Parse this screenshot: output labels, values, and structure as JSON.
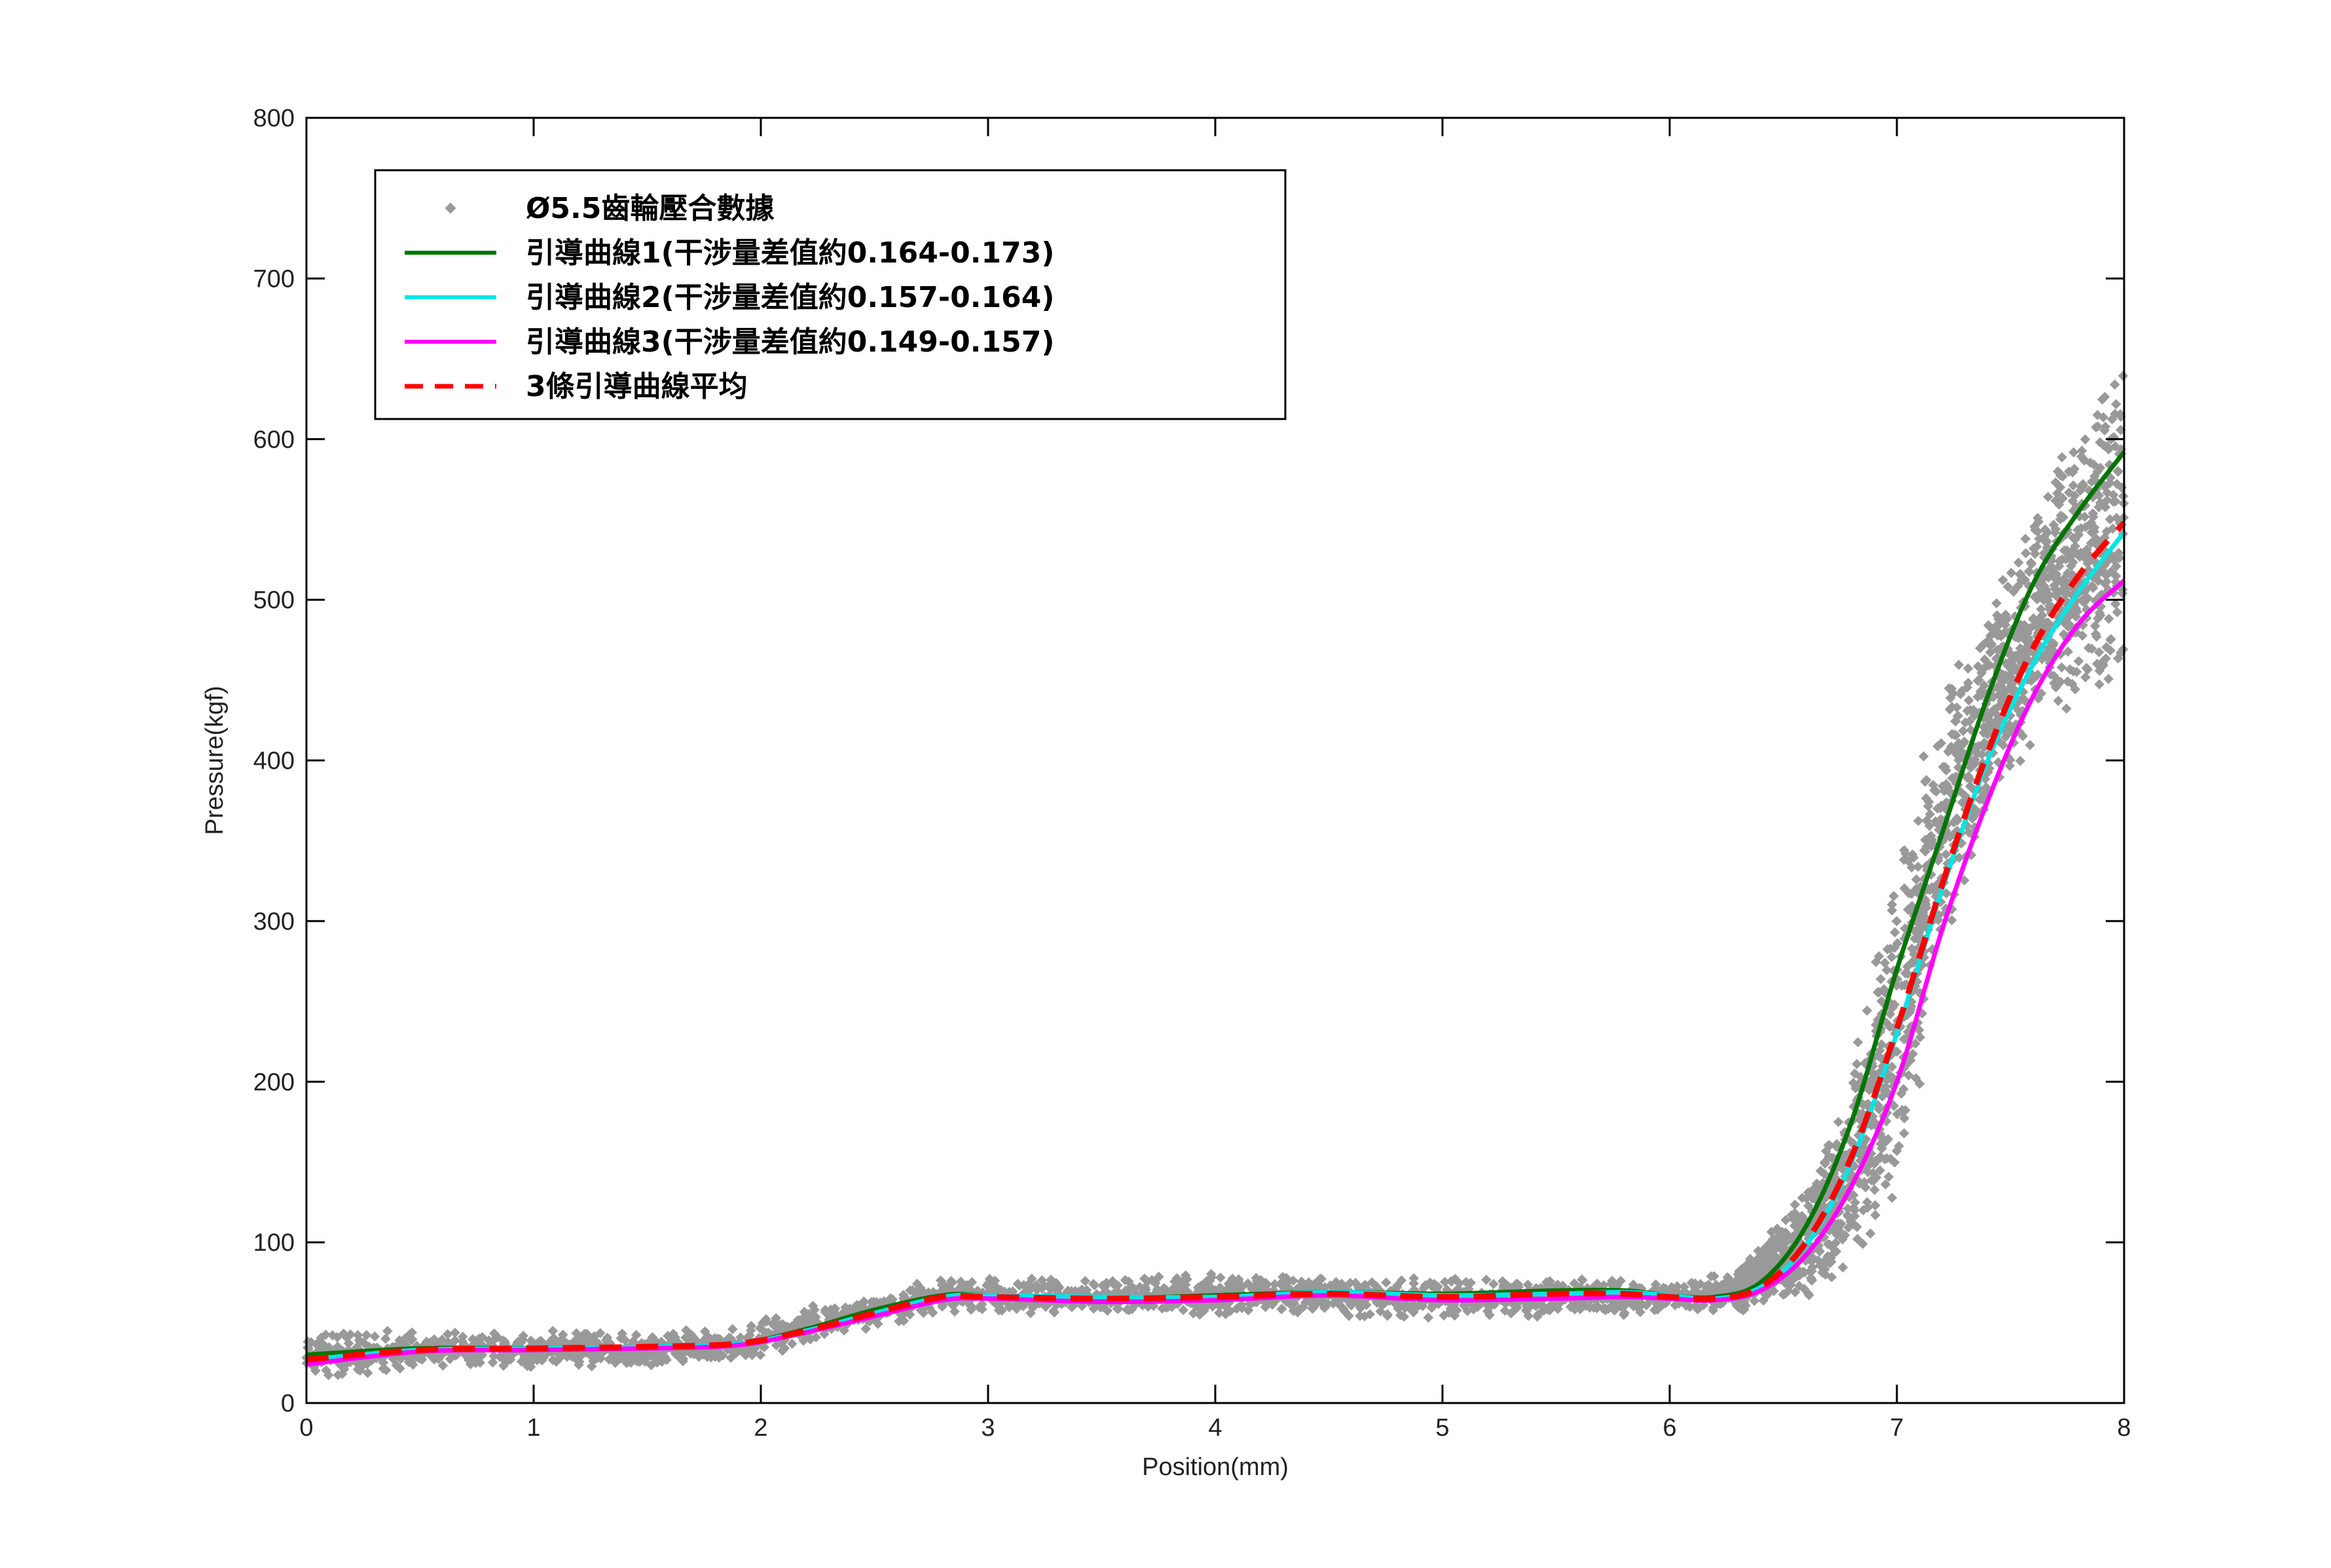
{
  "chart_data": {
    "type": "line",
    "title": "",
    "xlabel": "Position(mm)",
    "ylabel": "Pressure(kgf)",
    "xlim": [
      0,
      8
    ],
    "ylim": [
      0,
      800
    ],
    "xticks": [
      "0",
      "1",
      "2",
      "3",
      "4",
      "5",
      "6",
      "7",
      "8"
    ],
    "yticks": [
      "0",
      "100",
      "200",
      "300",
      "400",
      "500",
      "600",
      "700",
      "800"
    ],
    "grid": false,
    "legend_position": "top-left",
    "scatter": {
      "name": "Ø5.5齒輪壓合數據",
      "color": "#999999",
      "band": {
        "x": [
          0,
          0.5,
          1,
          1.5,
          1.9,
          2.2,
          2.5,
          2.8,
          3,
          3.5,
          4,
          4.5,
          5,
          5.5,
          6,
          6.3,
          6.6,
          6.8,
          7,
          7.2,
          7.4,
          7.6,
          7.8,
          8
        ],
        "lo": [
          18,
          25,
          25,
          25,
          28,
          38,
          50,
          58,
          58,
          58,
          58,
          58,
          55,
          56,
          58,
          60,
          75,
          100,
          150,
          300,
          380,
          430,
          460,
          470
        ],
        "hi": [
          40,
          42,
          42,
          42,
          44,
          58,
          65,
          75,
          75,
          75,
          78,
          75,
          75,
          75,
          72,
          80,
          125,
          190,
          320,
          420,
          480,
          540,
          590,
          630
        ]
      }
    },
    "series": [
      {
        "name": "引導曲線1(干涉量差值約0.164-0.173)",
        "color": "#007500",
        "style": "solid",
        "x": [
          0,
          0.5,
          1,
          1.5,
          1.9,
          2.2,
          2.5,
          2.8,
          3,
          3.5,
          4,
          4.5,
          5,
          5.5,
          5.8,
          6,
          6.2,
          6.4,
          6.6,
          6.8,
          7,
          7.2,
          7.4,
          7.6,
          7.8,
          8
        ],
        "y": [
          30,
          34,
          34,
          35,
          37,
          46,
          58,
          67,
          67,
          65,
          67,
          69,
          68,
          70,
          70,
          67,
          66,
          75,
          110,
          175,
          270,
          355,
          440,
          510,
          555,
          592
        ]
      },
      {
        "name": "引導曲線2(干涉量差值約0.157-0.164)",
        "color": "#00E5E5",
        "style": "solid",
        "x": [
          0,
          0.5,
          1,
          1.5,
          1.9,
          2.2,
          2.5,
          2.8,
          3,
          3.5,
          4,
          4.5,
          5,
          5.5,
          5.8,
          6,
          6.2,
          6.4,
          6.6,
          6.8,
          7,
          7.2,
          7.4,
          7.6,
          7.8,
          8
        ],
        "y": [
          27,
          33,
          34,
          35,
          37,
          45,
          56,
          66,
          67,
          66,
          66,
          69,
          67,
          68,
          69,
          67,
          65,
          72,
          98,
          150,
          230,
          320,
          400,
          460,
          505,
          542
        ]
      },
      {
        "name": "引導曲線3(干涉量差值約0.149-0.157)",
        "color": "#FF00FF",
        "style": "solid",
        "x": [
          0,
          0.5,
          1,
          1.5,
          1.9,
          2.2,
          2.5,
          2.8,
          3,
          3.5,
          4,
          4.5,
          5,
          5.5,
          5.8,
          6,
          6.2,
          6.4,
          6.6,
          6.8,
          7,
          7.2,
          7.4,
          7.6,
          7.8,
          8
        ],
        "y": [
          24,
          32,
          33,
          34,
          36,
          44,
          54,
          64,
          65,
          63,
          64,
          67,
          64,
          65,
          66,
          65,
          64,
          70,
          92,
          135,
          200,
          295,
          375,
          440,
          485,
          512
        ]
      },
      {
        "name": "3條引導曲線平均",
        "color": "#FF0000",
        "style": "dashed",
        "x": [
          0,
          0.5,
          1,
          1.5,
          1.9,
          2.2,
          2.5,
          2.8,
          3,
          3.5,
          4,
          4.5,
          5,
          5.5,
          5.8,
          6,
          6.2,
          6.4,
          6.6,
          6.8,
          7,
          7.2,
          7.4,
          7.6,
          7.8,
          8
        ],
        "y": [
          27,
          33,
          34,
          35,
          37,
          45,
          56,
          66,
          66,
          65,
          66,
          68,
          66,
          68,
          68,
          66,
          65,
          72,
          100,
          153,
          233,
          323,
          405,
          470,
          515,
          548
        ]
      }
    ]
  }
}
